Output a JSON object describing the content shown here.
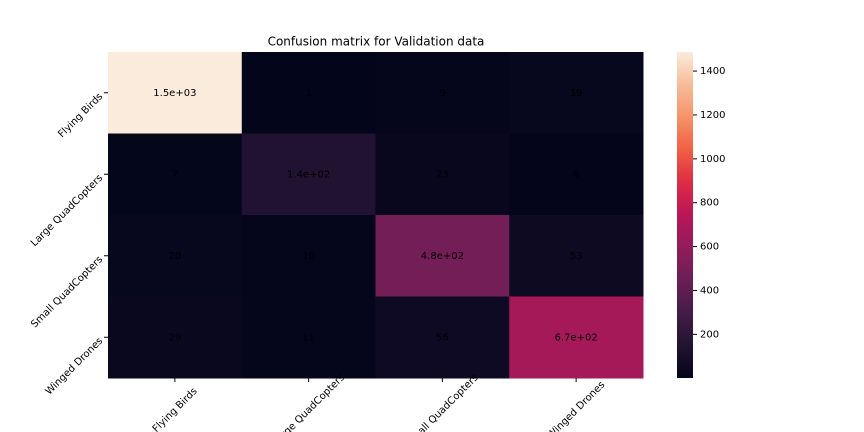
{
  "chart_data": {
    "type": "heatmap",
    "title": "Confusion matrix for Validation data",
    "x": [
      "Flying Birds",
      "Large QuadCopters",
      "Small QuadCopters",
      "Winged Drones"
    ],
    "y": [
      "Flying Birds",
      "Large QuadCopters",
      "Small QuadCopters",
      "Winged Drones"
    ],
    "values": [
      [
        1487,
        1,
        9,
        19
      ],
      [
        7,
        140,
        23,
        6
      ],
      [
        20,
        10,
        480,
        53
      ],
      [
        29,
        11,
        56,
        670
      ]
    ],
    "value_labels": [
      [
        "1.5e+03",
        "1",
        "9",
        "19"
      ],
      [
        "7",
        "1.4e+02",
        "23",
        "6"
      ],
      [
        "20",
        "10",
        "4.8e+02",
        "53"
      ],
      [
        "29",
        "11",
        "56",
        "6.7e+02"
      ]
    ],
    "colormap": "rocket",
    "zlim": [
      1,
      1487
    ],
    "zticks": [
      200,
      400,
      600,
      800,
      1000,
      1200,
      1400
    ]
  }
}
